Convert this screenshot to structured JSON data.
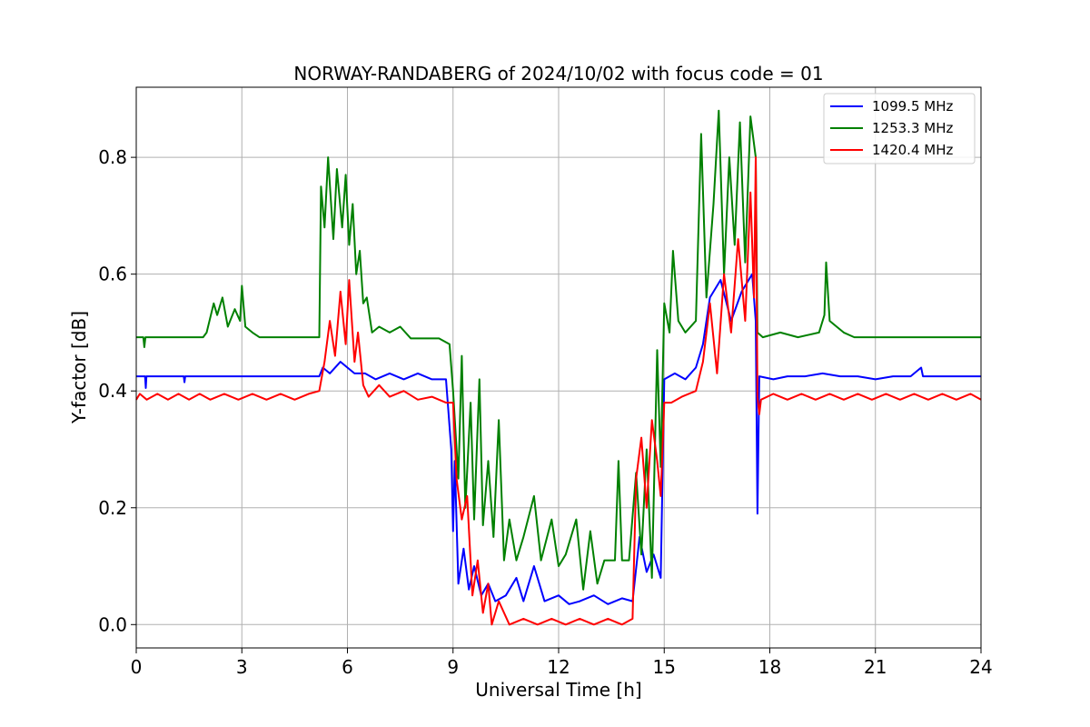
{
  "chart_data": {
    "type": "line",
    "title": "NORWAY-RANDABERG of 2024/10/02 with focus code = 01",
    "xlabel": "Universal Time [h]",
    "ylabel": "Y-factor [dB]",
    "xlim": [
      0,
      24
    ],
    "ylim": [
      -0.04,
      0.92
    ],
    "xticks": [
      0,
      3,
      6,
      9,
      12,
      15,
      18,
      21,
      24
    ],
    "xtick_labels": [
      "0",
      "3",
      "6",
      "9",
      "12",
      "15",
      "18",
      "21",
      "24"
    ],
    "yticks": [
      0.0,
      0.2,
      0.4,
      0.6,
      0.8
    ],
    "ytick_labels": [
      "0.0",
      "0.2",
      "0.4",
      "0.6",
      "0.8"
    ],
    "grid": true,
    "legend_position": "top-right",
    "series": [
      {
        "name": "1099.5 MHz",
        "color": "#0000ff",
        "points": [
          [
            0,
            0.425
          ],
          [
            0.25,
            0.425
          ],
          [
            0.27,
            0.405
          ],
          [
            0.29,
            0.425
          ],
          [
            1.35,
            0.425
          ],
          [
            1.37,
            0.415
          ],
          [
            1.39,
            0.425
          ],
          [
            5.2,
            0.425
          ],
          [
            5.3,
            0.44
          ],
          [
            5.5,
            0.43
          ],
          [
            5.8,
            0.45
          ],
          [
            6.0,
            0.44
          ],
          [
            6.2,
            0.43
          ],
          [
            6.5,
            0.43
          ],
          [
            6.8,
            0.42
          ],
          [
            7.2,
            0.43
          ],
          [
            7.6,
            0.42
          ],
          [
            8.0,
            0.43
          ],
          [
            8.4,
            0.42
          ],
          [
            8.8,
            0.42
          ],
          [
            8.95,
            0.3
          ],
          [
            9.0,
            0.16
          ],
          [
            9.05,
            0.28
          ],
          [
            9.15,
            0.07
          ],
          [
            9.3,
            0.13
          ],
          [
            9.45,
            0.06
          ],
          [
            9.6,
            0.1
          ],
          [
            9.8,
            0.05
          ],
          [
            10.0,
            0.07
          ],
          [
            10.2,
            0.04
          ],
          [
            10.5,
            0.05
          ],
          [
            10.8,
            0.08
          ],
          [
            11.0,
            0.04
          ],
          [
            11.3,
            0.1
          ],
          [
            11.6,
            0.04
          ],
          [
            12.0,
            0.05
          ],
          [
            12.3,
            0.035
          ],
          [
            12.6,
            0.04
          ],
          [
            13.0,
            0.05
          ],
          [
            13.4,
            0.035
          ],
          [
            13.8,
            0.045
          ],
          [
            14.1,
            0.04
          ],
          [
            14.3,
            0.15
          ],
          [
            14.5,
            0.09
          ],
          [
            14.7,
            0.12
          ],
          [
            14.9,
            0.08
          ],
          [
            15.0,
            0.42
          ],
          [
            15.3,
            0.43
          ],
          [
            15.6,
            0.42
          ],
          [
            15.9,
            0.44
          ],
          [
            16.1,
            0.48
          ],
          [
            16.3,
            0.56
          ],
          [
            16.6,
            0.59
          ],
          [
            16.9,
            0.52
          ],
          [
            17.2,
            0.57
          ],
          [
            17.5,
            0.6
          ],
          [
            17.6,
            0.52
          ],
          [
            17.65,
            0.19
          ],
          [
            17.7,
            0.425
          ],
          [
            18.1,
            0.42
          ],
          [
            18.5,
            0.425
          ],
          [
            19.0,
            0.425
          ],
          [
            19.5,
            0.43
          ],
          [
            20.0,
            0.425
          ],
          [
            20.5,
            0.425
          ],
          [
            21.0,
            0.42
          ],
          [
            21.5,
            0.425
          ],
          [
            22.0,
            0.425
          ],
          [
            22.3,
            0.44
          ],
          [
            22.35,
            0.425
          ],
          [
            23.0,
            0.425
          ],
          [
            24,
            0.425
          ]
        ]
      },
      {
        "name": "1253.3 MHz",
        "color": "#008000",
        "points": [
          [
            0,
            0.492
          ],
          [
            0.2,
            0.492
          ],
          [
            0.23,
            0.475
          ],
          [
            0.26,
            0.492
          ],
          [
            1.9,
            0.492
          ],
          [
            2.0,
            0.5
          ],
          [
            2.2,
            0.55
          ],
          [
            2.3,
            0.53
          ],
          [
            2.45,
            0.56
          ],
          [
            2.6,
            0.51
          ],
          [
            2.8,
            0.54
          ],
          [
            2.95,
            0.52
          ],
          [
            3.0,
            0.58
          ],
          [
            3.1,
            0.51
          ],
          [
            3.3,
            0.5
          ],
          [
            3.5,
            0.492
          ],
          [
            5.2,
            0.492
          ],
          [
            5.25,
            0.75
          ],
          [
            5.35,
            0.68
          ],
          [
            5.45,
            0.8
          ],
          [
            5.6,
            0.66
          ],
          [
            5.7,
            0.78
          ],
          [
            5.85,
            0.68
          ],
          [
            5.95,
            0.77
          ],
          [
            6.05,
            0.65
          ],
          [
            6.15,
            0.72
          ],
          [
            6.25,
            0.6
          ],
          [
            6.35,
            0.64
          ],
          [
            6.45,
            0.55
          ],
          [
            6.55,
            0.56
          ],
          [
            6.7,
            0.5
          ],
          [
            6.9,
            0.51
          ],
          [
            7.2,
            0.5
          ],
          [
            7.5,
            0.51
          ],
          [
            7.8,
            0.49
          ],
          [
            8.2,
            0.49
          ],
          [
            8.6,
            0.49
          ],
          [
            8.9,
            0.48
          ],
          [
            9.0,
            0.4
          ],
          [
            9.15,
            0.25
          ],
          [
            9.25,
            0.46
          ],
          [
            9.35,
            0.2
          ],
          [
            9.5,
            0.38
          ],
          [
            9.6,
            0.18
          ],
          [
            9.75,
            0.42
          ],
          [
            9.85,
            0.17
          ],
          [
            10.0,
            0.28
          ],
          [
            10.15,
            0.15
          ],
          [
            10.3,
            0.35
          ],
          [
            10.45,
            0.11
          ],
          [
            10.6,
            0.18
          ],
          [
            10.8,
            0.11
          ],
          [
            11.0,
            0.15
          ],
          [
            11.3,
            0.22
          ],
          [
            11.5,
            0.11
          ],
          [
            11.8,
            0.18
          ],
          [
            12.0,
            0.1
          ],
          [
            12.2,
            0.12
          ],
          [
            12.5,
            0.18
          ],
          [
            12.7,
            0.06
          ],
          [
            12.9,
            0.16
          ],
          [
            13.1,
            0.07
          ],
          [
            13.3,
            0.11
          ],
          [
            13.6,
            0.11
          ],
          [
            13.7,
            0.28
          ],
          [
            13.8,
            0.11
          ],
          [
            14.0,
            0.11
          ],
          [
            14.2,
            0.26
          ],
          [
            14.35,
            0.12
          ],
          [
            14.5,
            0.3
          ],
          [
            14.65,
            0.08
          ],
          [
            14.8,
            0.47
          ],
          [
            14.9,
            0.27
          ],
          [
            15.0,
            0.55
          ],
          [
            15.15,
            0.5
          ],
          [
            15.25,
            0.64
          ],
          [
            15.4,
            0.52
          ],
          [
            15.6,
            0.5
          ],
          [
            15.9,
            0.52
          ],
          [
            16.05,
            0.84
          ],
          [
            16.2,
            0.56
          ],
          [
            16.4,
            0.72
          ],
          [
            16.55,
            0.88
          ],
          [
            16.7,
            0.6
          ],
          [
            16.85,
            0.8
          ],
          [
            17.0,
            0.65
          ],
          [
            17.15,
            0.86
          ],
          [
            17.3,
            0.62
          ],
          [
            17.45,
            0.87
          ],
          [
            17.6,
            0.8
          ],
          [
            17.65,
            0.5
          ],
          [
            17.8,
            0.492
          ],
          [
            18.3,
            0.5
          ],
          [
            18.8,
            0.492
          ],
          [
            19.4,
            0.5
          ],
          [
            19.55,
            0.53
          ],
          [
            19.6,
            0.62
          ],
          [
            19.7,
            0.52
          ],
          [
            19.9,
            0.51
          ],
          [
            20.1,
            0.5
          ],
          [
            20.4,
            0.492
          ],
          [
            24,
            0.492
          ]
        ]
      },
      {
        "name": "1420.4 MHz",
        "color": "#ff0000",
        "points": [
          [
            0,
            0.385
          ],
          [
            0.1,
            0.395
          ],
          [
            0.3,
            0.385
          ],
          [
            0.6,
            0.395
          ],
          [
            0.9,
            0.385
          ],
          [
            1.2,
            0.395
          ],
          [
            1.5,
            0.385
          ],
          [
            1.8,
            0.395
          ],
          [
            2.1,
            0.385
          ],
          [
            2.5,
            0.395
          ],
          [
            2.9,
            0.385
          ],
          [
            3.3,
            0.395
          ],
          [
            3.7,
            0.385
          ],
          [
            4.1,
            0.395
          ],
          [
            4.5,
            0.385
          ],
          [
            4.9,
            0.395
          ],
          [
            5.2,
            0.4
          ],
          [
            5.35,
            0.45
          ],
          [
            5.5,
            0.52
          ],
          [
            5.65,
            0.46
          ],
          [
            5.8,
            0.57
          ],
          [
            5.95,
            0.48
          ],
          [
            6.05,
            0.59
          ],
          [
            6.2,
            0.45
          ],
          [
            6.3,
            0.5
          ],
          [
            6.45,
            0.41
          ],
          [
            6.6,
            0.39
          ],
          [
            6.9,
            0.41
          ],
          [
            7.2,
            0.39
          ],
          [
            7.6,
            0.4
          ],
          [
            8.0,
            0.385
          ],
          [
            8.4,
            0.39
          ],
          [
            8.8,
            0.38
          ],
          [
            9.0,
            0.38
          ],
          [
            9.1,
            0.25
          ],
          [
            9.25,
            0.18
          ],
          [
            9.4,
            0.22
          ],
          [
            9.55,
            0.05
          ],
          [
            9.7,
            0.11
          ],
          [
            9.85,
            0.02
          ],
          [
            10.0,
            0.07
          ],
          [
            10.1,
            0.0
          ],
          [
            10.3,
            0.04
          ],
          [
            10.6,
            0.0
          ],
          [
            11.0,
            0.01
          ],
          [
            11.4,
            0.0
          ],
          [
            11.8,
            0.01
          ],
          [
            12.2,
            0.0
          ],
          [
            12.6,
            0.01
          ],
          [
            13.0,
            0.0
          ],
          [
            13.4,
            0.01
          ],
          [
            13.8,
            0.0
          ],
          [
            14.1,
            0.01
          ],
          [
            14.2,
            0.25
          ],
          [
            14.35,
            0.32
          ],
          [
            14.5,
            0.2
          ],
          [
            14.65,
            0.35
          ],
          [
            14.8,
            0.28
          ],
          [
            14.9,
            0.22
          ],
          [
            15.0,
            0.38
          ],
          [
            15.2,
            0.38
          ],
          [
            15.5,
            0.39
          ],
          [
            15.9,
            0.4
          ],
          [
            16.1,
            0.45
          ],
          [
            16.3,
            0.55
          ],
          [
            16.5,
            0.43
          ],
          [
            16.7,
            0.6
          ],
          [
            16.9,
            0.5
          ],
          [
            17.1,
            0.66
          ],
          [
            17.3,
            0.52
          ],
          [
            17.45,
            0.74
          ],
          [
            17.55,
            0.56
          ],
          [
            17.6,
            0.8
          ],
          [
            17.65,
            0.39
          ],
          [
            17.7,
            0.36
          ],
          [
            17.75,
            0.385
          ],
          [
            18.1,
            0.395
          ],
          [
            18.5,
            0.385
          ],
          [
            18.9,
            0.395
          ],
          [
            19.3,
            0.385
          ],
          [
            19.7,
            0.395
          ],
          [
            20.1,
            0.385
          ],
          [
            20.5,
            0.395
          ],
          [
            20.9,
            0.385
          ],
          [
            21.3,
            0.395
          ],
          [
            21.7,
            0.385
          ],
          [
            22.1,
            0.395
          ],
          [
            22.5,
            0.385
          ],
          [
            22.9,
            0.395
          ],
          [
            23.3,
            0.385
          ],
          [
            23.7,
            0.395
          ],
          [
            24,
            0.385
          ]
        ]
      }
    ]
  }
}
